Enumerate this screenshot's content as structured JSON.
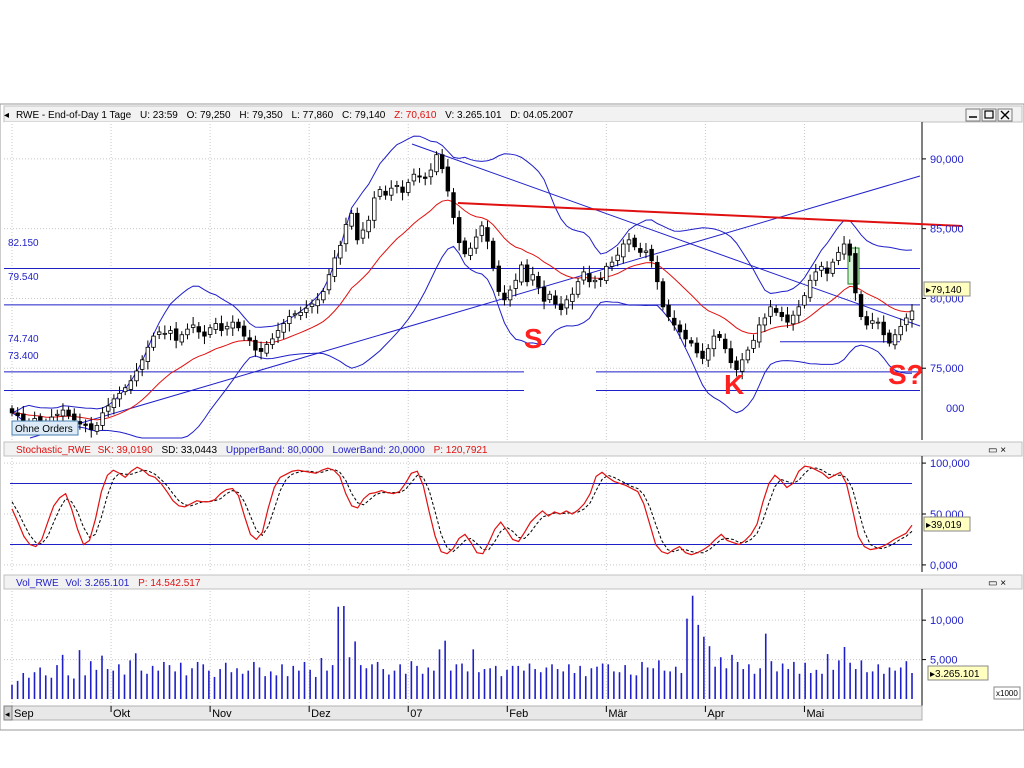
{
  "price_panel": {
    "header": {
      "title": "RWE - End-of-Day 1 Tage",
      "u": "U: 23:59",
      "o": "O: 79,250",
      "h": "H: 79,350",
      "l": "L: 77,860",
      "c": "C: 79,140",
      "z": "Z: 70,610",
      "v": "V: 3.265.101",
      "d": "D: 04.05.2007"
    },
    "orders_label": "Ohne Orders",
    "current_price_label": "79,140",
    "extra_axis_label": "000",
    "hline_labels": [
      "82.150",
      "79.540",
      "74.740",
      "73.400"
    ],
    "annotations": [
      "S",
      "K",
      "S?"
    ]
  },
  "stochastic_panel": {
    "header": {
      "name": "Stochastic_RWE",
      "sk": "SK: 39,0190",
      "sd": "SD: 33,0443",
      "upper": "UppperBand: 80,0000",
      "lower": "LowerBand: 20,0000",
      "p": "P: 120,7921"
    },
    "current_label": "39,019"
  },
  "volume_panel": {
    "header": {
      "name": "Vol_RWE",
      "vol": "Vol: 3.265.101",
      "p": "P: 14.542.517"
    },
    "current_label": "3.265.101",
    "unit_label": "x1000"
  },
  "window_controls": {
    "min_icon": "minimize-icon",
    "max_icon": "maximize-icon",
    "close_icon": "close-icon"
  },
  "colors": {
    "blue": "#1f1fc8",
    "red": "#e01010",
    "annotation_red": "#ff2020",
    "grid": "#c8c8c8",
    "value_box": "#ffffc0"
  },
  "chart_data": [
    {
      "type": "candlestick",
      "title": "RWE - End-of-Day 1 Tage",
      "x_tick_labels": [
        "Sep",
        "Okt",
        "Nov",
        "Dez",
        "07",
        "Feb",
        "Mär",
        "Apr",
        "Mai"
      ],
      "y_tick_labels": [
        "75,000",
        "80,000",
        "85,000",
        "90,000"
      ],
      "ylim": [
        70.0,
        92.5
      ],
      "grid": true,
      "hlines": [
        82.15,
        79.54,
        74.74,
        73.4
      ],
      "closes": [
        71.8,
        71.6,
        71.2,
        70.9,
        71.4,
        71.1,
        70.8,
        71.5,
        71.7,
        72.0,
        71.6,
        71.3,
        71.0,
        70.9,
        70.6,
        70.9,
        71.8,
        72.3,
        72.8,
        73.2,
        73.6,
        74.1,
        74.8,
        75.6,
        76.5,
        77.3,
        77.6,
        77.5,
        77.7,
        77.0,
        77.4,
        77.8,
        78.1,
        77.6,
        77.3,
        77.9,
        78.2,
        77.7,
        78.0,
        78.3,
        77.9,
        77.3,
        77.0,
        76.3,
        76.2,
        76.7,
        77.1,
        77.7,
        78.2,
        78.7,
        78.9,
        79.0,
        79.3,
        79.6,
        79.9,
        80.5,
        81.7,
        82.9,
        83.8,
        85.3,
        86.1,
        84.2,
        84.9,
        85.6,
        87.2,
        87.8,
        87.4,
        87.9,
        88.1,
        87.6,
        88.3,
        88.9,
        88.7,
        88.6,
        89.2,
        90.3,
        89.3,
        87.7,
        85.8,
        84.0,
        83.2,
        83.6,
        84.4,
        85.2,
        84.1,
        82.2,
        80.5,
        79.9,
        80.6,
        81.3,
        82.4,
        81.2,
        81.7,
        80.8,
        79.8,
        80.3,
        79.6,
        79.2,
        79.9,
        80.3,
        81.2,
        81.9,
        81.2,
        81.3,
        81.4,
        82.3,
        82.6,
        83.1,
        83.9,
        84.2,
        83.7,
        83.3,
        83.4,
        82.7,
        81.2,
        79.4,
        78.7,
        78.1,
        77.6,
        77.1,
        76.8,
        76.1,
        75.7,
        76.4,
        77.3,
        77.2,
        76.4,
        75.4,
        74.9,
        75.6,
        76.3,
        77.0,
        78.1,
        78.6,
        79.4,
        79.0,
        78.7,
        78.3,
        78.8,
        79.4,
        80.2,
        81.3,
        81.9,
        82.3,
        81.8,
        82.6,
        83.3,
        83.9,
        83.1,
        80.4,
        78.7,
        78.1,
        78.4,
        78.3,
        77.4,
        76.8,
        77.4,
        78.0,
        78.6,
        79.1
      ]
    },
    {
      "type": "line",
      "title": "Stochastic_RWE",
      "x_tick_labels": [
        "Sep",
        "Okt",
        "Nov",
        "Dez",
        "07",
        "Feb",
        "Mär",
        "Apr",
        "Mai"
      ],
      "y_tick_labels": [
        "0,000",
        "50,000",
        "100,000"
      ],
      "ylim": [
        -5,
        105
      ],
      "hlines": [
        80,
        20
      ],
      "series": [
        {
          "name": "SK",
          "values": [
            55,
            42,
            28,
            20,
            18,
            25,
            42,
            58,
            66,
            70,
            55,
            35,
            20,
            24,
            45,
            72,
            88,
            93,
            90,
            86,
            92,
            96,
            93,
            88,
            86,
            80,
            72,
            63,
            58,
            57,
            60,
            63,
            62,
            62,
            64,
            70,
            74,
            75,
            68,
            48,
            30,
            25,
            32,
            56,
            76,
            86,
            89,
            92,
            93,
            92,
            91,
            90,
            93,
            95,
            93,
            87,
            70,
            58,
            56,
            65,
            70,
            71,
            73,
            71,
            70,
            72,
            80,
            90,
            92,
            78,
            52,
            28,
            13,
            11,
            16,
            26,
            30,
            22,
            12,
            11,
            22,
            35,
            42,
            34,
            25,
            23,
            32,
            42,
            48,
            53,
            48,
            52,
            50,
            53,
            50,
            54,
            60,
            70,
            87,
            91,
            86,
            82,
            80,
            78,
            75,
            72,
            60,
            40,
            20,
            13,
            11,
            15,
            18,
            12,
            10,
            12,
            15,
            19,
            25,
            30,
            24,
            22,
            20,
            24,
            30,
            40,
            62,
            80,
            88,
            83,
            76,
            80,
            92,
            97,
            96,
            93,
            90,
            85,
            88,
            91,
            80,
            55,
            28,
            18,
            15,
            16,
            18,
            21,
            25,
            28,
            31,
            39
          ]
        },
        {
          "name": "SD",
          "values": [
            62,
            52,
            40,
            29,
            22,
            21,
            28,
            42,
            55,
            65,
            62,
            52,
            37,
            27,
            30,
            47,
            68,
            84,
            90,
            89,
            89,
            91,
            93,
            92,
            89,
            84,
            78,
            70,
            63,
            59,
            58,
            60,
            62,
            62,
            63,
            65,
            70,
            73,
            71,
            62,
            48,
            34,
            29,
            38,
            55,
            73,
            84,
            89,
            91,
            92,
            92,
            91,
            91,
            93,
            94,
            91,
            83,
            70,
            61,
            59,
            64,
            69,
            71,
            71,
            71,
            71,
            74,
            81,
            88,
            86,
            73,
            52,
            30,
            17,
            13,
            18,
            24,
            26,
            21,
            15,
            15,
            23,
            33,
            37,
            33,
            27,
            26,
            32,
            40,
            47,
            49,
            51,
            50,
            51,
            51,
            52,
            55,
            61,
            73,
            84,
            88,
            86,
            83,
            80,
            77,
            75,
            69,
            57,
            40,
            24,
            15,
            13,
            15,
            15,
            13,
            12,
            12,
            15,
            20,
            25,
            26,
            25,
            22,
            22,
            25,
            31,
            44,
            61,
            77,
            84,
            82,
            80,
            83,
            90,
            95,
            95,
            93,
            89,
            88,
            88,
            86,
            75,
            54,
            33,
            20,
            17,
            16,
            18,
            21,
            25,
            28,
            33
          ]
        }
      ]
    },
    {
      "type": "bar",
      "title": "Vol_RWE",
      "x_tick_labels": [
        "Sep",
        "Okt",
        "Nov",
        "Dez",
        "07",
        "Feb",
        "Mär",
        "Apr",
        "Mai"
      ],
      "y_tick_labels": [
        "5,000",
        "10,000"
      ],
      "ylabel": "x1000",
      "ylim": [
        0,
        13.7
      ],
      "values": [
        1.8,
        2.3,
        3.3,
        2.7,
        3.4,
        4.0,
        3.0,
        2.7,
        4.3,
        5.6,
        3.0,
        2.6,
        6.2,
        3.0,
        4.8,
        3.7,
        5.5,
        3.8,
        3.6,
        4.4,
        3.1,
        4.9,
        5.8,
        3.6,
        3.2,
        4.2,
        3.6,
        4.7,
        4.3,
        3.5,
        4.6,
        3.0,
        3.9,
        4.7,
        4.4,
        3.6,
        2.8,
        3.8,
        4.6,
        3.4,
        3.9,
        3.2,
        3.6,
        4.7,
        4.0,
        2.9,
        3.5,
        3.0,
        4.4,
        2.9,
        4.2,
        3.6,
        4.7,
        3.7,
        2.8,
        5.2,
        3.6,
        4.3,
        11.7,
        11.8,
        5.3,
        7.3,
        4.3,
        3.9,
        4.4,
        4.7,
        3.8,
        3.1,
        3.6,
        4.4,
        3.2,
        4.8,
        4.2,
        3.2,
        4.0,
        3.6,
        6.3,
        7.4,
        3.6,
        4.4,
        4.5,
        3.5,
        6.3,
        3.4,
        3.8,
        3.9,
        4.2,
        2.9,
        3.7,
        4.2,
        4.2,
        3.6,
        4.5,
        3.8,
        3.4,
        4.0,
        4.4,
        3.8,
        3.5,
        4.4,
        3.3,
        4.2,
        2.9,
        3.9,
        4.1,
        4.5,
        4.4,
        3.5,
        3.4,
        4.3,
        3.1,
        3.0,
        4.7,
        4.0,
        3.9,
        4.9,
        3.6,
        3.5,
        4.1,
        3.3,
        10.2,
        13.1,
        9.4,
        7.9,
        6.7,
        4.1,
        5.3,
        3.9,
        5.6,
        4.7,
        3.8,
        4.4,
        3.2,
        3.9,
        8.3,
        4.8,
        3.5,
        4.5,
        3.8,
        4.7,
        3.2,
        4.6,
        3.3,
        3.7,
        3.2,
        5.7,
        3.7,
        4.9,
        6.6,
        4.6,
        3.8,
        4.9,
        3.4,
        3.5,
        4.4,
        3.2,
        4.0,
        3.6,
        4.0,
        4.8,
        3.3
      ]
    }
  ]
}
